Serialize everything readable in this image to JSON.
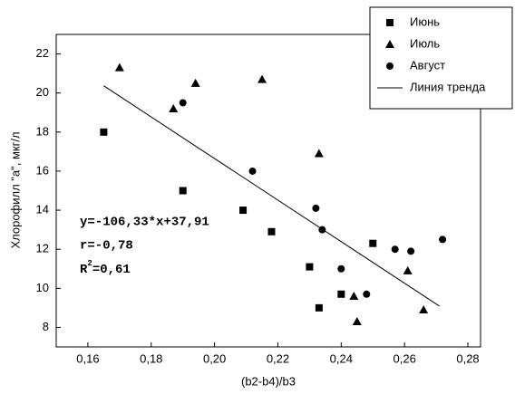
{
  "chart_data": {
    "type": "scatter",
    "x_label": "(b2-b4)/b3",
    "y_label": "Хлорофилл \"а\", мкг/л",
    "xlim": [
      0.15,
      0.284
    ],
    "ylim": [
      7,
      23
    ],
    "xticks": [
      {
        "value": 0.16,
        "label": "0,16"
      },
      {
        "value": 0.18,
        "label": "0,18"
      },
      {
        "value": 0.2,
        "label": "0,20"
      },
      {
        "value": 0.22,
        "label": "0,22"
      },
      {
        "value": 0.24,
        "label": "0,24"
      },
      {
        "value": 0.26,
        "label": "0,26"
      },
      {
        "value": 0.28,
        "label": "0,28"
      }
    ],
    "yticks": [
      8,
      10,
      12,
      14,
      16,
      18,
      20,
      22
    ],
    "color": "#000000",
    "legend": "top-right",
    "series": [
      {
        "name": "Июнь",
        "marker": "square",
        "x": [
          0.165,
          0.19,
          0.209,
          0.218,
          0.23,
          0.233,
          0.24,
          0.25
        ],
        "values": [
          18,
          15,
          14,
          12.9,
          11.1,
          9,
          9.7,
          12.3
        ]
      },
      {
        "name": "Июль",
        "marker": "triangle",
        "x": [
          0.17,
          0.187,
          0.194,
          0.215,
          0.233,
          0.244,
          0.245,
          0.261,
          0.266
        ],
        "values": [
          21.3,
          19.2,
          20.5,
          20.7,
          16.9,
          9.6,
          8.3,
          10.9,
          8.9
        ]
      },
      {
        "name": "Август",
        "marker": "circle",
        "x": [
          0.19,
          0.212,
          0.232,
          0.234,
          0.24,
          0.248,
          0.257,
          0.262,
          0.272
        ],
        "values": [
          19.5,
          16,
          14.1,
          13,
          11,
          9.7,
          12,
          11.9,
          12.5
        ]
      },
      {
        "name": "Линия тренда",
        "marker": "line",
        "x": [
          0.165,
          0.271
        ],
        "values": [
          20.37,
          9.09
        ]
      }
    ],
    "annotations": [
      "y=-106,33*x+37,91",
      "r=-0,78",
      {
        "base": "R",
        "sup": "2",
        "rest": "=0,61"
      }
    ]
  }
}
